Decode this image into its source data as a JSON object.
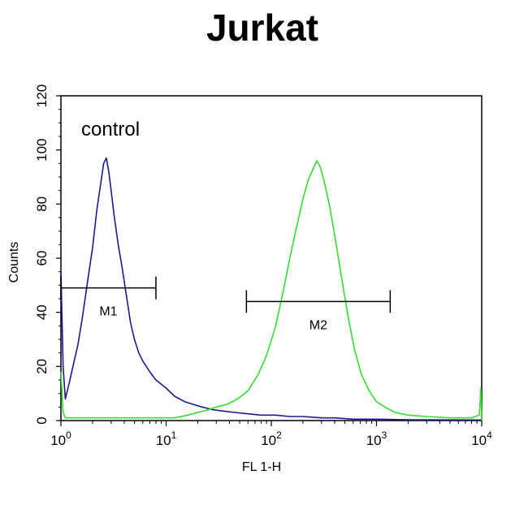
{
  "chart_data": {
    "type": "line",
    "title": "Jurkat",
    "xlabel": "FL 1-H",
    "ylabel": "Counts",
    "x_scale": "log",
    "xlim": [
      1,
      10000
    ],
    "ylim": [
      0,
      120
    ],
    "y_ticks": [
      "0",
      "20",
      "40",
      "60",
      "80",
      "100",
      "120"
    ],
    "x_ticks": [
      {
        "base": "10",
        "exp": "0"
      },
      {
        "base": "10",
        "exp": "1"
      },
      {
        "base": "10",
        "exp": "2"
      },
      {
        "base": "10",
        "exp": "3"
      },
      {
        "base": "10",
        "exp": "4"
      }
    ],
    "annotation": "control",
    "markers": [
      {
        "label": "M1",
        "x_start": 1,
        "x_end": 8,
        "y": 49
      },
      {
        "label": "M2",
        "x_start": 58,
        "x_end": 1350,
        "y": 44
      }
    ],
    "series": [
      {
        "color": "#1a1a8c",
        "points": [
          [
            1.0,
            55
          ],
          [
            1.05,
            20
          ],
          [
            1.1,
            8
          ],
          [
            1.2,
            14
          ],
          [
            1.3,
            20
          ],
          [
            1.45,
            28
          ],
          [
            1.6,
            38
          ],
          [
            1.8,
            52
          ],
          [
            2.0,
            64
          ],
          [
            2.2,
            78
          ],
          [
            2.4,
            88
          ],
          [
            2.55,
            95
          ],
          [
            2.7,
            97
          ],
          [
            2.85,
            92
          ],
          [
            3.0,
            85
          ],
          [
            3.2,
            76
          ],
          [
            3.5,
            65
          ],
          [
            3.8,
            57
          ],
          [
            4.2,
            46
          ],
          [
            4.6,
            36
          ],
          [
            5.0,
            30
          ],
          [
            5.5,
            25
          ],
          [
            6.0,
            22
          ],
          [
            7.0,
            18
          ],
          [
            8.0,
            15
          ],
          [
            10,
            12
          ],
          [
            12,
            9
          ],
          [
            15,
            7
          ],
          [
            18,
            6
          ],
          [
            22,
            5
          ],
          [
            28,
            4
          ],
          [
            35,
            3.5
          ],
          [
            45,
            3
          ],
          [
            60,
            2.5
          ],
          [
            80,
            2
          ],
          [
            110,
            2
          ],
          [
            150,
            1.5
          ],
          [
            200,
            1.5
          ],
          [
            300,
            1
          ],
          [
            400,
            1
          ],
          [
            600,
            0.5
          ],
          [
            1000,
            0.5
          ],
          [
            2000,
            0.3
          ],
          [
            10000,
            0.2
          ]
        ]
      },
      {
        "color": "#33dd33",
        "points": [
          [
            1.0,
            18
          ],
          [
            1.05,
            3
          ],
          [
            1.1,
            1
          ],
          [
            1.5,
            1
          ],
          [
            2,
            1
          ],
          [
            3,
            1
          ],
          [
            5,
            1
          ],
          [
            8,
            1
          ],
          [
            12,
            1
          ],
          [
            16,
            2
          ],
          [
            20,
            3
          ],
          [
            25,
            4
          ],
          [
            30,
            5
          ],
          [
            38,
            6
          ],
          [
            48,
            8
          ],
          [
            60,
            11
          ],
          [
            75,
            17
          ],
          [
            90,
            24
          ],
          [
            110,
            35
          ],
          [
            130,
            48
          ],
          [
            150,
            60
          ],
          [
            175,
            72
          ],
          [
            200,
            82
          ],
          [
            225,
            89
          ],
          [
            250,
            93
          ],
          [
            270,
            96
          ],
          [
            290,
            94
          ],
          [
            320,
            88
          ],
          [
            360,
            79
          ],
          [
            410,
            66
          ],
          [
            470,
            52
          ],
          [
            540,
            38
          ],
          [
            620,
            26
          ],
          [
            720,
            17
          ],
          [
            850,
            11
          ],
          [
            1000,
            7
          ],
          [
            1200,
            5
          ],
          [
            1500,
            3
          ],
          [
            2000,
            2
          ],
          [
            3000,
            1.5
          ],
          [
            5000,
            1
          ],
          [
            8000,
            1
          ],
          [
            9500,
            2
          ],
          [
            9800,
            12
          ],
          [
            10000,
            0
          ]
        ]
      }
    ]
  }
}
